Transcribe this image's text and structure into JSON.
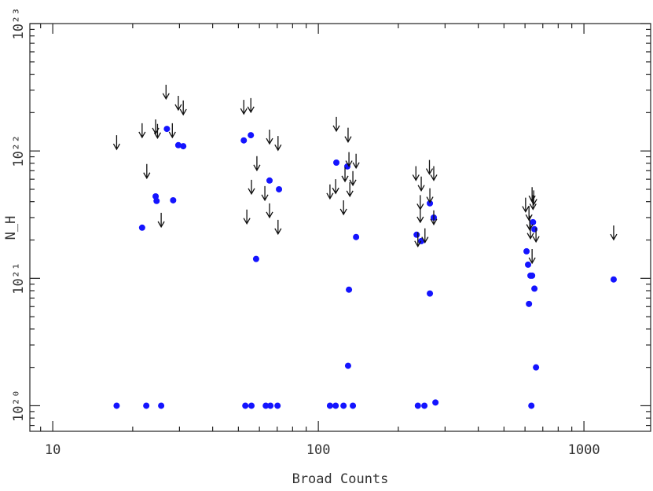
{
  "chart_data": {
    "type": "scatter",
    "x_label": "Broad Counts",
    "y_label": "N_H",
    "xscale": "log",
    "yscale": "log",
    "xlim": [
      8.2,
      1783
    ],
    "ylim": [
      6.3e+19,
      1e+23
    ],
    "xticks": [
      10,
      100,
      1000
    ],
    "yticks": [
      {
        "value": 1e+20,
        "label": "10²⁰"
      },
      {
        "value": 1e+21,
        "label": "10²¹"
      },
      {
        "value": 1e+22,
        "label": "10²²"
      },
      {
        "value": 1e+23,
        "label": "10²³"
      }
    ],
    "series": [
      {
        "marker": "dot",
        "color": "#1414ff",
        "x": [
          17.4,
          22.5,
          25.6,
          21.7,
          24.4,
          24.6,
          26.9,
          28.4,
          29.7,
          31.0,
          52.4,
          55.7,
          53.1,
          56.0,
          65.5,
          71.1,
          58.3,
          63.4,
          66.0,
          70.2,
          110.6,
          116.9,
          116.2,
          124.4,
          128.6,
          130.4,
          129.4,
          134.9,
          138.7,
          234.5,
          237,
          244.1,
          250.8,
          263,
          263,
          272,
          276,
          608,
          616,
          629,
          638,
          621,
          643,
          651,
          651,
          634,
          660,
          1294
        ],
        "values": [
          1e+20,
          1e+20,
          1e+20,
          2.5e+21,
          4.4e+21,
          4.05e+21,
          1.49e+22,
          4.1e+21,
          1.11e+22,
          1.09e+22,
          1.21e+22,
          1.33e+22,
          1e+20,
          1e+20,
          5.86e+21,
          5e+21,
          1.42e+21,
          1e+20,
          1e+20,
          1e+20,
          1e+20,
          8.1e+21,
          1e+20,
          1e+20,
          7.56e+21,
          8.15e+20,
          2.06e+20,
          1e+20,
          2.11e+21,
          2.2e+21,
          1e+20,
          1.96e+21,
          1e+20,
          3.88e+21,
          7.6e+20,
          3e+21,
          1.06e+20,
          1.63e+21,
          1.28e+21,
          1.05e+21,
          1.05e+21,
          6.3e+20,
          2.76e+21,
          2.43e+21,
          8.3e+20,
          1e+20,
          2e+20,
          9.8e+20
        ]
      },
      {
        "marker": "arrow",
        "color": "#111111",
        "x": [
          17.4,
          21.7,
          22.6,
          24.4,
          24.8,
          25.6,
          26.7,
          28.2,
          29.7,
          31.0,
          52.4,
          55.7,
          53.8,
          56.0,
          58.7,
          62.9,
          65.5,
          65.5,
          70.5,
          70.5,
          110.6,
          116.2,
          116.9,
          124.4,
          126,
          129.4,
          130.4,
          131.4,
          134.9,
          138.7,
          233,
          237,
          244,
          242,
          242,
          252,
          262,
          263,
          272,
          272,
          603,
          621,
          625,
          629,
          638,
          643,
          647,
          660,
          638,
          1294
        ],
        "values": [
          1.33e+22,
          1.65e+22,
          7.9e+21,
          1.77e+22,
          1.63e+22,
          3.27e+21,
          3.31e+22,
          1.65e+22,
          2.71e+22,
          2.49e+22,
          2.52e+22,
          2.6e+22,
          3.47e+21,
          5.94e+21,
          9.1e+21,
          5.3e+21,
          1.47e+22,
          3.88e+21,
          1.31e+22,
          2.88e+21,
          5.46e+21,
          6e+21,
          1.85e+22,
          4.1e+21,
          7.45e+21,
          1.52e+22,
          9.8e+21,
          5.69e+21,
          6.95e+21,
          9.5e+21,
          7.6e+21,
          2.3e+21,
          6.3e+21,
          4.5e+21,
          3.56e+21,
          2.47e+21,
          8.5e+21,
          5.1e+21,
          7.6e+21,
          3.42e+21,
          4.3e+21,
          3.7e+21,
          3.1e+21,
          2.65e+21,
          5.2e+21,
          4.5e+21,
          4.9e+21,
          2.5e+21,
          1.7e+21,
          2.6e+21
        ]
      }
    ]
  }
}
